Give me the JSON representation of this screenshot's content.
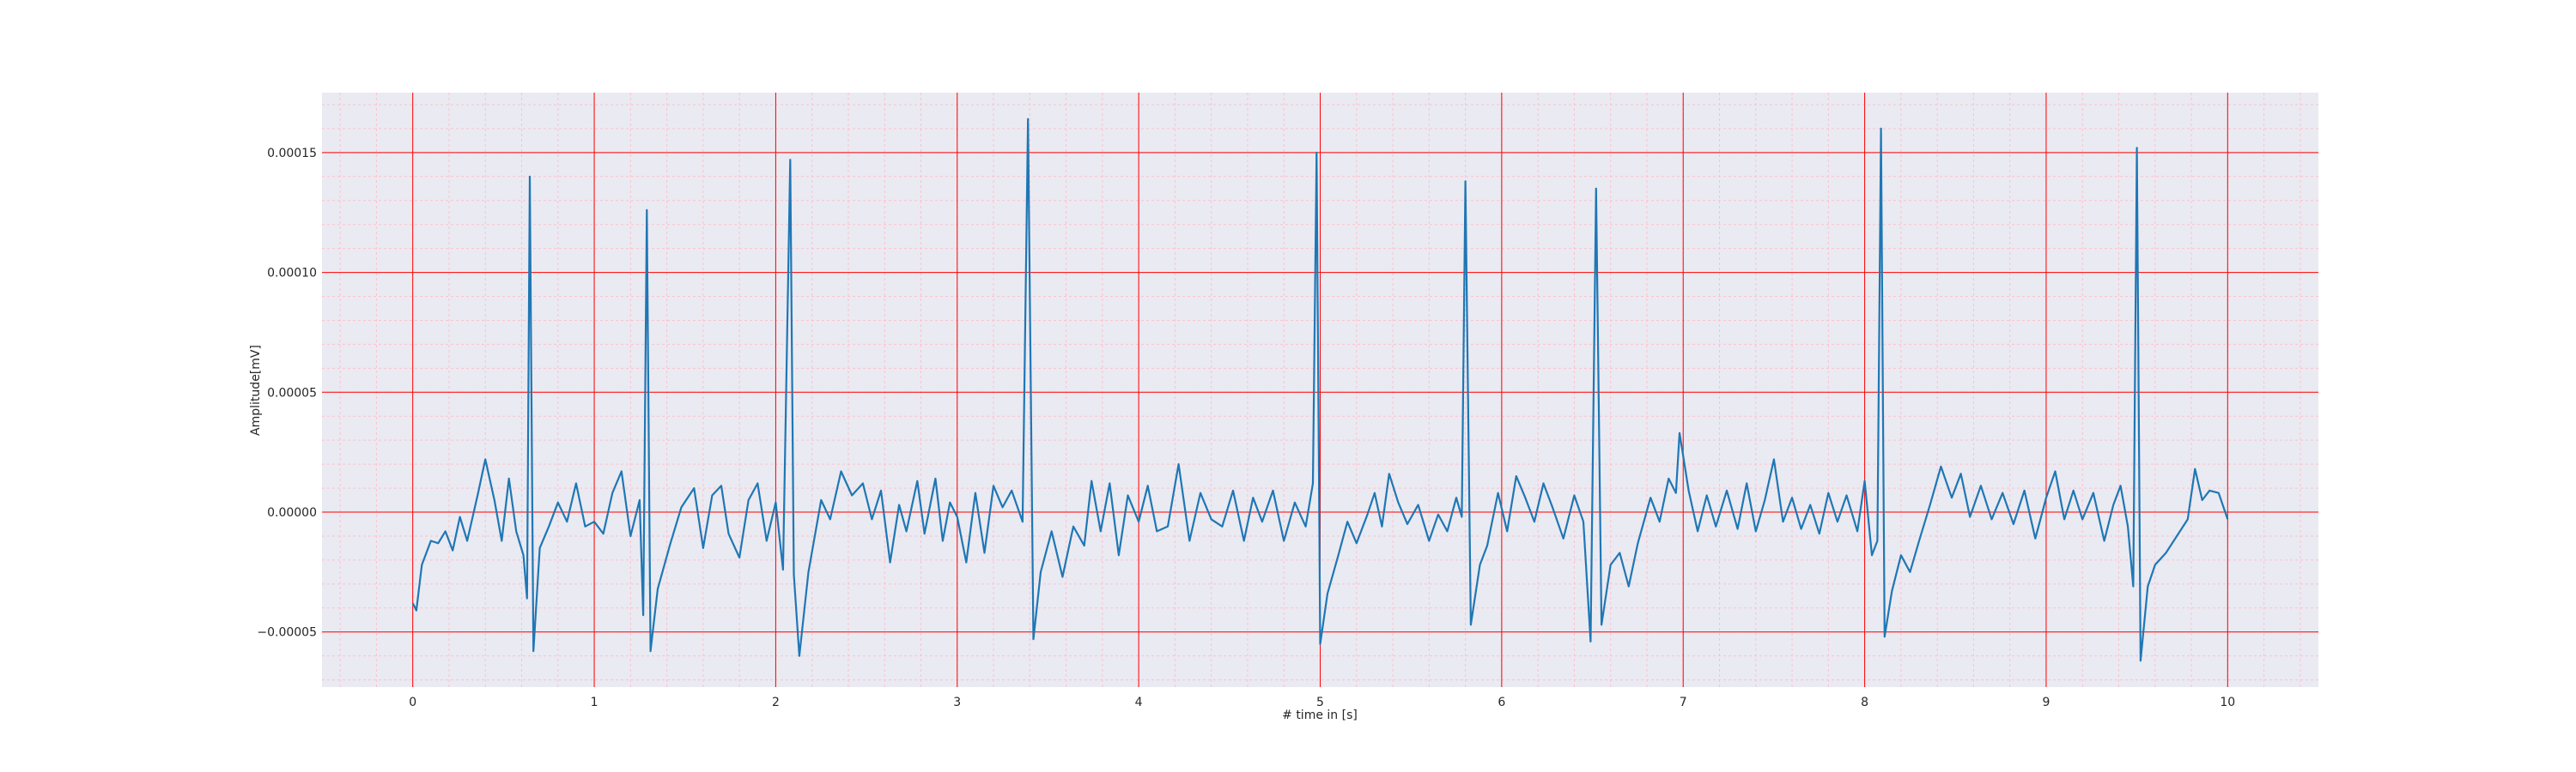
{
  "chart_data": {
    "type": "line",
    "title": "",
    "xlabel": "# time in [s]",
    "ylabel": "Amplitude[mV]",
    "xlim": [
      -0.5,
      10.5
    ],
    "ylim": [
      -7.3e-05,
      0.000175
    ],
    "x_ticks": [
      0,
      1,
      2,
      3,
      4,
      5,
      6,
      7,
      8,
      9,
      10
    ],
    "x_tick_labels": [
      "0",
      "1",
      "2",
      "3",
      "4",
      "5",
      "6",
      "7",
      "8",
      "9",
      "10"
    ],
    "y_ticks": [
      -5e-05,
      0,
      5e-05,
      0.0001,
      0.00015
    ],
    "y_tick_labels": [
      "−0.00005",
      "0.00000",
      "0.00005",
      "0.00010",
      "0.00015"
    ],
    "grid": {
      "major": true,
      "minor": true
    },
    "colors": {
      "background": "#eaeaf2",
      "major_grid": "#ff0000",
      "minor_grid": "#ffc0cb",
      "line": "#1f77b4"
    },
    "series": [
      {
        "values": [
          [
            0.0,
            -3.8e-05
          ],
          [
            0.02,
            -4.1e-05
          ],
          [
            0.05,
            -2.2e-05
          ],
          [
            0.1,
            -1.2e-05
          ],
          [
            0.14,
            -1.3e-05
          ],
          [
            0.18,
            -8e-06
          ],
          [
            0.22,
            -1.6e-05
          ],
          [
            0.26,
            -2e-06
          ],
          [
            0.3,
            -1.2e-05
          ],
          [
            0.36,
            8e-06
          ],
          [
            0.4,
            2.2e-05
          ],
          [
            0.45,
            5e-06
          ],
          [
            0.49,
            -1.2e-05
          ],
          [
            0.53,
            1.4e-05
          ],
          [
            0.57,
            -8e-06
          ],
          [
            0.61,
            -1.8e-05
          ],
          [
            0.63,
            -3.6e-05
          ],
          [
            0.645,
            0.00014
          ],
          [
            0.665,
            -5.8e-05
          ],
          [
            0.7,
            -1.5e-05
          ],
          [
            0.75,
            -6e-06
          ],
          [
            0.8,
            4e-06
          ],
          [
            0.85,
            -4e-06
          ],
          [
            0.9,
            1.2e-05
          ],
          [
            0.95,
            -6e-06
          ],
          [
            1.0,
            -4e-06
          ],
          [
            1.05,
            -9e-06
          ],
          [
            1.1,
            8e-06
          ],
          [
            1.15,
            1.7e-05
          ],
          [
            1.2,
            -1e-05
          ],
          [
            1.25,
            5e-06
          ],
          [
            1.27,
            -4.3e-05
          ],
          [
            1.29,
            0.000126
          ],
          [
            1.31,
            -5.8e-05
          ],
          [
            1.35,
            -3.2e-05
          ],
          [
            1.42,
            -1.3e-05
          ],
          [
            1.48,
            2e-06
          ],
          [
            1.55,
            1e-05
          ],
          [
            1.6,
            -1.5e-05
          ],
          [
            1.65,
            7e-06
          ],
          [
            1.7,
            1.1e-05
          ],
          [
            1.74,
            -9e-06
          ],
          [
            1.8,
            -1.9e-05
          ],
          [
            1.85,
            5e-06
          ],
          [
            1.9,
            1.2e-05
          ],
          [
            1.95,
            -1.2e-05
          ],
          [
            2.0,
            4e-06
          ],
          [
            2.04,
            -2.4e-05
          ],
          [
            2.08,
            0.000147
          ],
          [
            2.1,
            -2.6e-05
          ],
          [
            2.13,
            -6e-05
          ],
          [
            2.18,
            -2.5e-05
          ],
          [
            2.25,
            5e-06
          ],
          [
            2.3,
            -3e-06
          ],
          [
            2.36,
            1.7e-05
          ],
          [
            2.42,
            7e-06
          ],
          [
            2.48,
            1.2e-05
          ],
          [
            2.53,
            -3e-06
          ],
          [
            2.58,
            9e-06
          ],
          [
            2.63,
            -2.1e-05
          ],
          [
            2.68,
            3e-06
          ],
          [
            2.72,
            -8e-06
          ],
          [
            2.78,
            1.3e-05
          ],
          [
            2.82,
            -9e-06
          ],
          [
            2.88,
            1.4e-05
          ],
          [
            2.92,
            -1.2e-05
          ],
          [
            2.96,
            4e-06
          ],
          [
            3.0,
            -2e-06
          ],
          [
            3.05,
            -2.1e-05
          ],
          [
            3.1,
            8e-06
          ],
          [
            3.15,
            -1.7e-05
          ],
          [
            3.2,
            1.1e-05
          ],
          [
            3.25,
            2e-06
          ],
          [
            3.3,
            9e-06
          ],
          [
            3.36,
            -4e-06
          ],
          [
            3.39,
            0.000164
          ],
          [
            3.42,
            -5.3e-05
          ],
          [
            3.46,
            -2.5e-05
          ],
          [
            3.52,
            -8e-06
          ],
          [
            3.58,
            -2.7e-05
          ],
          [
            3.64,
            -6e-06
          ],
          [
            3.7,
            -1.4e-05
          ],
          [
            3.74,
            1.3e-05
          ],
          [
            3.79,
            -8e-06
          ],
          [
            3.84,
            1.2e-05
          ],
          [
            3.89,
            -1.8e-05
          ],
          [
            3.94,
            7e-06
          ],
          [
            4.0,
            -4e-06
          ],
          [
            4.05,
            1.1e-05
          ],
          [
            4.1,
            -8e-06
          ],
          [
            4.16,
            -6e-06
          ],
          [
            4.22,
            2e-05
          ],
          [
            4.28,
            -1.2e-05
          ],
          [
            4.34,
            8e-06
          ],
          [
            4.4,
            -3e-06
          ],
          [
            4.46,
            -6e-06
          ],
          [
            4.52,
            9e-06
          ],
          [
            4.58,
            -1.2e-05
          ],
          [
            4.63,
            6e-06
          ],
          [
            4.68,
            -4e-06
          ],
          [
            4.74,
            9e-06
          ],
          [
            4.8,
            -1.2e-05
          ],
          [
            4.86,
            4e-06
          ],
          [
            4.92,
            -6e-06
          ],
          [
            4.96,
            1.2e-05
          ],
          [
            4.98,
            0.00015
          ],
          [
            5.0,
            -5.5e-05
          ],
          [
            5.04,
            -3.4e-05
          ],
          [
            5.1,
            -1.8e-05
          ],
          [
            5.15,
            -4e-06
          ],
          [
            5.2,
            -1.3e-05
          ],
          [
            5.26,
            -1e-06
          ],
          [
            5.3,
            8e-06
          ],
          [
            5.34,
            -6e-06
          ],
          [
            5.38,
            1.6e-05
          ],
          [
            5.43,
            4e-06
          ],
          [
            5.48,
            -5e-06
          ],
          [
            5.54,
            3e-06
          ],
          [
            5.6,
            -1.2e-05
          ],
          [
            5.65,
            -1e-06
          ],
          [
            5.7,
            -8e-06
          ],
          [
            5.75,
            6e-06
          ],
          [
            5.78,
            -2e-06
          ],
          [
            5.8,
            0.000138
          ],
          [
            5.83,
            -4.7e-05
          ],
          [
            5.88,
            -2.2e-05
          ],
          [
            5.92,
            -1.4e-05
          ],
          [
            5.98,
            8e-06
          ],
          [
            6.03,
            -8e-06
          ],
          [
            6.08,
            1.5e-05
          ],
          [
            6.13,
            6e-06
          ],
          [
            6.18,
            -4e-06
          ],
          [
            6.23,
            1.2e-05
          ],
          [
            6.28,
            2e-06
          ],
          [
            6.34,
            -1.1e-05
          ],
          [
            6.4,
            7e-06
          ],
          [
            6.45,
            -4e-06
          ],
          [
            6.49,
            -5.4e-05
          ],
          [
            6.52,
            0.000135
          ],
          [
            6.55,
            -4.7e-05
          ],
          [
            6.6,
            -2.2e-05
          ],
          [
            6.65,
            -1.7e-05
          ],
          [
            6.7,
            -3.1e-05
          ],
          [
            6.75,
            -1.3e-05
          ],
          [
            6.82,
            6e-06
          ],
          [
            6.87,
            -4e-06
          ],
          [
            6.92,
            1.4e-05
          ],
          [
            6.96,
            8e-06
          ],
          [
            6.98,
            3.3e-05
          ],
          [
            7.03,
            9e-06
          ],
          [
            7.08,
            -8e-06
          ],
          [
            7.13,
            7e-06
          ],
          [
            7.18,
            -6e-06
          ],
          [
            7.24,
            9e-06
          ],
          [
            7.3,
            -7e-06
          ],
          [
            7.35,
            1.2e-05
          ],
          [
            7.4,
            -8e-06
          ],
          [
            7.45,
            5e-06
          ],
          [
            7.5,
            2.2e-05
          ],
          [
            7.55,
            -4e-06
          ],
          [
            7.6,
            6e-06
          ],
          [
            7.65,
            -7e-06
          ],
          [
            7.7,
            3e-06
          ],
          [
            7.75,
            -9e-06
          ],
          [
            7.8,
            8e-06
          ],
          [
            7.85,
            -4e-06
          ],
          [
            7.9,
            7e-06
          ],
          [
            7.96,
            -8e-06
          ],
          [
            8.0,
            1.3e-05
          ],
          [
            8.04,
            -1.8e-05
          ],
          [
            8.07,
            -1.2e-05
          ],
          [
            8.09,
            0.00016
          ],
          [
            8.11,
            -5.2e-05
          ],
          [
            8.15,
            -3.3e-05
          ],
          [
            8.2,
            -1.8e-05
          ],
          [
            8.25,
            -2.5e-05
          ],
          [
            8.3,
            -1.2e-05
          ],
          [
            8.36,
            3e-06
          ],
          [
            8.42,
            1.9e-05
          ],
          [
            8.48,
            6e-06
          ],
          [
            8.53,
            1.6e-05
          ],
          [
            8.58,
            -2e-06
          ],
          [
            8.64,
            1.1e-05
          ],
          [
            8.7,
            -3e-06
          ],
          [
            8.76,
            8e-06
          ],
          [
            8.82,
            -5e-06
          ],
          [
            8.88,
            9e-06
          ],
          [
            8.94,
            -1.1e-05
          ],
          [
            9.0,
            6e-06
          ],
          [
            9.05,
            1.7e-05
          ],
          [
            9.1,
            -3e-06
          ],
          [
            9.15,
            9e-06
          ],
          [
            9.2,
            -3e-06
          ],
          [
            9.26,
            8e-06
          ],
          [
            9.32,
            -1.2e-05
          ],
          [
            9.37,
            3e-06
          ],
          [
            9.41,
            1.1e-05
          ],
          [
            9.45,
            -6e-06
          ],
          [
            9.48,
            -3.1e-05
          ],
          [
            9.5,
            0.000152
          ],
          [
            9.52,
            -6.2e-05
          ],
          [
            9.56,
            -3.1e-05
          ],
          [
            9.6,
            -2.2e-05
          ],
          [
            9.66,
            -1.7e-05
          ],
          [
            9.72,
            -1e-05
          ],
          [
            9.78,
            -3e-06
          ],
          [
            9.82,
            1.8e-05
          ],
          [
            9.86,
            5e-06
          ],
          [
            9.9,
            9e-06
          ],
          [
            9.95,
            8e-06
          ],
          [
            10.0,
            -3e-06
          ]
        ]
      }
    ]
  }
}
